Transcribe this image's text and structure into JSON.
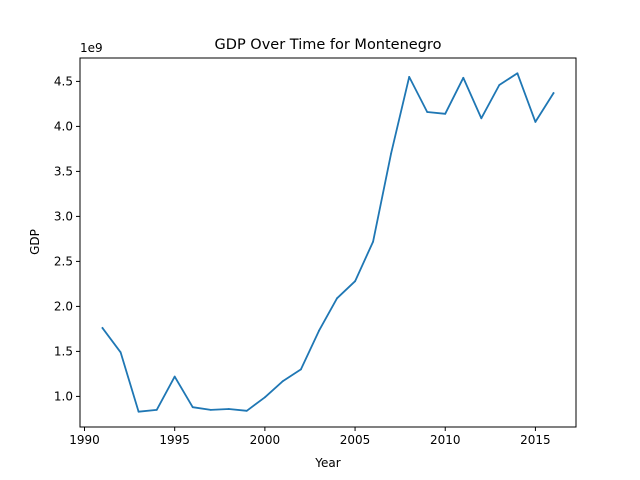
{
  "chart_data": {
    "type": "line",
    "title": "GDP Over Time for Montenegro",
    "xlabel": "Year",
    "ylabel": "GDP",
    "y_offset_label": "1e9",
    "xlim": [
      1989.75,
      2017.25
    ],
    "ylim": [
      0.66,
      4.76
    ],
    "x_ticks": [
      1990,
      1995,
      2000,
      2005,
      2010,
      2015
    ],
    "x_tick_labels": [
      "1990",
      "1995",
      "2000",
      "2005",
      "2010",
      "2015"
    ],
    "y_ticks": [
      1.0,
      1.5,
      2.0,
      2.5,
      3.0,
      3.5,
      4.0,
      4.5
    ],
    "y_tick_labels": [
      "1.0",
      "1.5",
      "2.0",
      "2.5",
      "3.0",
      "3.5",
      "4.0",
      "4.5"
    ],
    "grid": false,
    "line_color": "#1f77b4",
    "series": [
      {
        "x": [
          1991,
          1992,
          1993,
          1994,
          1995,
          1996,
          1997,
          1998,
          1999,
          2000,
          2001,
          2002,
          2003,
          2004,
          2005,
          2006,
          2007,
          2008,
          2009,
          2010,
          2011,
          2012,
          2013,
          2014,
          2015,
          2016
        ],
        "values": [
          1.76,
          1.49,
          0.83,
          0.85,
          1.22,
          0.88,
          0.85,
          0.86,
          0.84,
          0.99,
          1.17,
          1.3,
          1.73,
          2.09,
          2.28,
          2.72,
          3.7,
          4.55,
          4.16,
          4.14,
          4.54,
          4.09,
          4.46,
          4.59,
          4.05,
          4.37
        ]
      }
    ]
  }
}
